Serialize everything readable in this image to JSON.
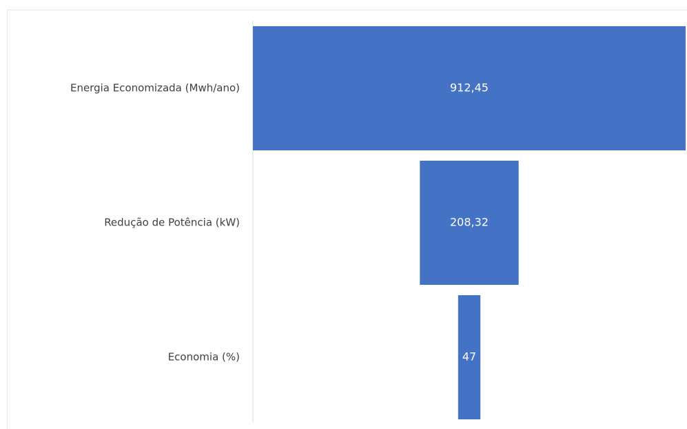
{
  "chart_data": {
    "type": "funnel",
    "categories": [
      "Energia Economizada (Mwh/ano)",
      "Redução de Potência (kW)",
      "Economia (%)"
    ],
    "values": [
      912.45,
      208.32,
      47
    ],
    "value_labels": [
      "912,45",
      "208,32",
      "47"
    ],
    "color": "#4472c4"
  }
}
